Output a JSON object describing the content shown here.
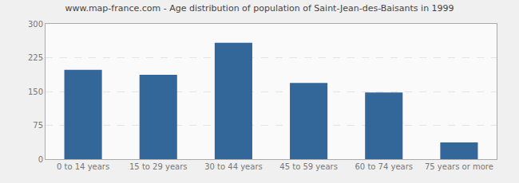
{
  "chart_data": {
    "type": "bar",
    "title": "www.map-france.com - Age distribution of population of Saint-Jean-des-Baisants in 1999",
    "categories": [
      "0 to 14 years",
      "15 to 29 years",
      "30 to 44 years",
      "45 to 59 years",
      "60 to 74 years",
      "75 years or more"
    ],
    "values": [
      198,
      187,
      258,
      169,
      148,
      37
    ],
    "color": "#336699",
    "ylim": [
      0,
      300
    ],
    "yticks": [
      0,
      75,
      150,
      225,
      300
    ],
    "grid": true
  }
}
